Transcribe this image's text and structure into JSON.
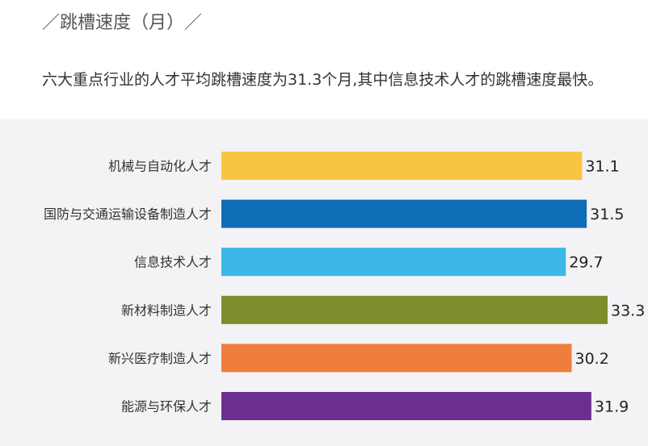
{
  "page": {
    "title": "／跳槽速度（月）／",
    "subtitle": "六大重点行业的人才平均跳槽速度为31.3个月,其中信息技术人才的跳槽速度最快。"
  },
  "chart_data": {
    "type": "bar",
    "orientation": "horizontal",
    "categories": [
      "机械与自动化人才",
      "国防与交通运输设备制造人才",
      "信息技术人才",
      "新材料制造人才",
      "新兴医疗制造人才",
      "能源与环保人才"
    ],
    "values": [
      31.1,
      31.5,
      29.7,
      33.3,
      30.2,
      31.9
    ],
    "value_labels": [
      "31.1",
      "31.5",
      "29.7",
      "33.3",
      "30.2",
      "31.9"
    ],
    "colors": [
      "#f9c440",
      "#0f6db5",
      "#3cb7ea",
      "#7f8c2c",
      "#ef7d3c",
      "#6d2f8f"
    ],
    "xlim": [
      0,
      33.3
    ],
    "grid": false,
    "legend": "none"
  }
}
